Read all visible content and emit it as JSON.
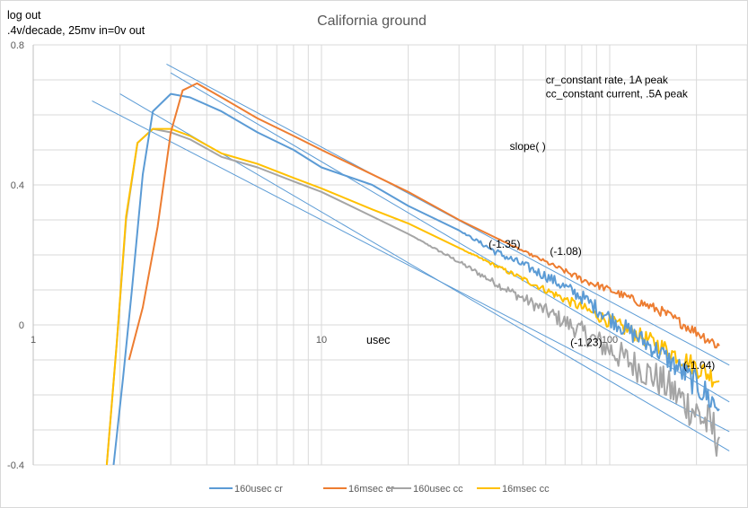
{
  "chart_data": {
    "type": "line",
    "title": "California ground",
    "ylabel_lines": [
      "log out",
      ".4v/decade, 25mv in=0v out"
    ],
    "xlabel": "usec",
    "x_scale": "log",
    "xlim": [
      1,
      250
    ],
    "ylim": [
      -0.4,
      0.8
    ],
    "x_ticks": [
      {
        "value": 1,
        "label": "1"
      },
      {
        "value": 10,
        "label": "10"
      },
      {
        "value": 100,
        "label": "100"
      }
    ],
    "y_ticks": [
      {
        "value": 0.8,
        "label": "0.8"
      },
      {
        "value": 0.4,
        "label": "0.4"
      },
      {
        "value": 0,
        "label": "0"
      },
      {
        "value": -0.4,
        "label": "-0.4"
      }
    ],
    "grid": true,
    "legend_position": "bottom",
    "series": [
      {
        "name": "160usec cr",
        "color": "#5B9BD5",
        "x": [
          1.9,
          2.05,
          2.2,
          2.4,
          2.6,
          3.0,
          3.5,
          4.5,
          6.0,
          8.0,
          10.0,
          15.0,
          20.0,
          30.0,
          40.0,
          60.0,
          80.0,
          100,
          150,
          200,
          240
        ],
        "y": [
          -0.4,
          -0.15,
          0.1,
          0.43,
          0.61,
          0.66,
          0.65,
          0.61,
          0.55,
          0.5,
          0.45,
          0.4,
          0.34,
          0.27,
          0.21,
          0.14,
          0.08,
          0.02,
          -0.08,
          -0.17,
          -0.24
        ],
        "noise": [
          0,
          0,
          0,
          0,
          0,
          0,
          0,
          0,
          0,
          0,
          0,
          0,
          0,
          0,
          0.01,
          0.015,
          0.02,
          0.025,
          0.03,
          0.04,
          0.05
        ]
      },
      {
        "name": "16msec cr",
        "color": "#ED7D31",
        "x": [
          2.15,
          2.4,
          2.7,
          3.0,
          3.3,
          3.7,
          4.5,
          6.0,
          8.0,
          10.0,
          15.0,
          20.0,
          30.0,
          40.0,
          60.0,
          80.0,
          100,
          150,
          200,
          240
        ],
        "y": [
          -0.1,
          0.05,
          0.28,
          0.55,
          0.67,
          0.69,
          0.65,
          0.59,
          0.54,
          0.5,
          0.43,
          0.38,
          0.3,
          0.25,
          0.18,
          0.13,
          0.1,
          0.04,
          -0.02,
          -0.06
        ],
        "noise": [
          0,
          0,
          0,
          0,
          0,
          0,
          0,
          0,
          0,
          0,
          0,
          0,
          0,
          0,
          0.005,
          0.01,
          0.01,
          0.015,
          0.015,
          0.02
        ]
      },
      {
        "name": "160usec cc",
        "color": "#A5A5A5",
        "x": [
          1.8,
          1.95,
          2.1,
          2.3,
          2.6,
          3.0,
          3.5,
          4.5,
          6.0,
          8.0,
          10.0,
          15.0,
          20.0,
          30.0,
          40.0,
          60.0,
          80.0,
          100,
          150,
          200,
          240
        ],
        "y": [
          -0.4,
          -0.05,
          0.3,
          0.52,
          0.56,
          0.55,
          0.53,
          0.48,
          0.45,
          0.41,
          0.38,
          0.31,
          0.26,
          0.18,
          0.12,
          0.04,
          -0.02,
          -0.07,
          -0.16,
          -0.25,
          -0.32
        ],
        "noise": [
          0,
          0,
          0,
          0,
          0,
          0,
          0,
          0,
          0,
          0,
          0,
          0,
          0,
          0.005,
          0.01,
          0.02,
          0.03,
          0.04,
          0.05,
          0.06,
          0.07
        ]
      },
      {
        "name": "16msec cc",
        "color": "#FFC000",
        "x": [
          1.8,
          1.95,
          2.1,
          2.3,
          2.6,
          3.0,
          3.5,
          4.5,
          6.0,
          8.0,
          10.0,
          15.0,
          20.0,
          30.0,
          40.0,
          60.0,
          80.0,
          100,
          150,
          200,
          240
        ],
        "y": [
          -0.4,
          -0.05,
          0.31,
          0.52,
          0.56,
          0.56,
          0.54,
          0.49,
          0.46,
          0.42,
          0.39,
          0.33,
          0.29,
          0.22,
          0.17,
          0.1,
          0.05,
          0.01,
          -0.06,
          -0.12,
          -0.16
        ],
        "noise": [
          0,
          0,
          0,
          0,
          0,
          0,
          0,
          0,
          0,
          0,
          0,
          0,
          0,
          0,
          0.005,
          0.01,
          0.015,
          0.02,
          0.025,
          0.03,
          0.03
        ]
      }
    ],
    "trendlines": {
      "color": "#5B9BD5",
      "lines": [
        {
          "x": [
            2.9,
            260
          ],
          "y": [
            0.745,
            -0.115
          ]
        },
        {
          "x": [
            3.0,
            260
          ],
          "y": [
            0.72,
            -0.22
          ]
        },
        {
          "x": [
            2.0,
            260
          ],
          "y": [
            0.66,
            -0.36
          ]
        },
        {
          "x": [
            1.6,
            260
          ],
          "y": [
            0.64,
            -0.305
          ]
        }
      ]
    },
    "annotations": [
      {
        "text": "cr_constant rate, 1A peak",
        "x": 60,
        "y": 0.69
      },
      {
        "text": "cc_constant current, .5A peak",
        "x": 60,
        "y": 0.65
      },
      {
        "text": "slope(     )",
        "x": 45,
        "y": 0.5
      },
      {
        "text": "(-1.35)",
        "x": 38,
        "y": 0.22
      },
      {
        "text": "(-1.08)",
        "x": 62,
        "y": 0.2
      },
      {
        "text": "(-1.23)",
        "x": 73,
        "y": -0.06
      },
      {
        "text": "(-1.04)",
        "x": 180,
        "y": -0.125
      }
    ]
  }
}
